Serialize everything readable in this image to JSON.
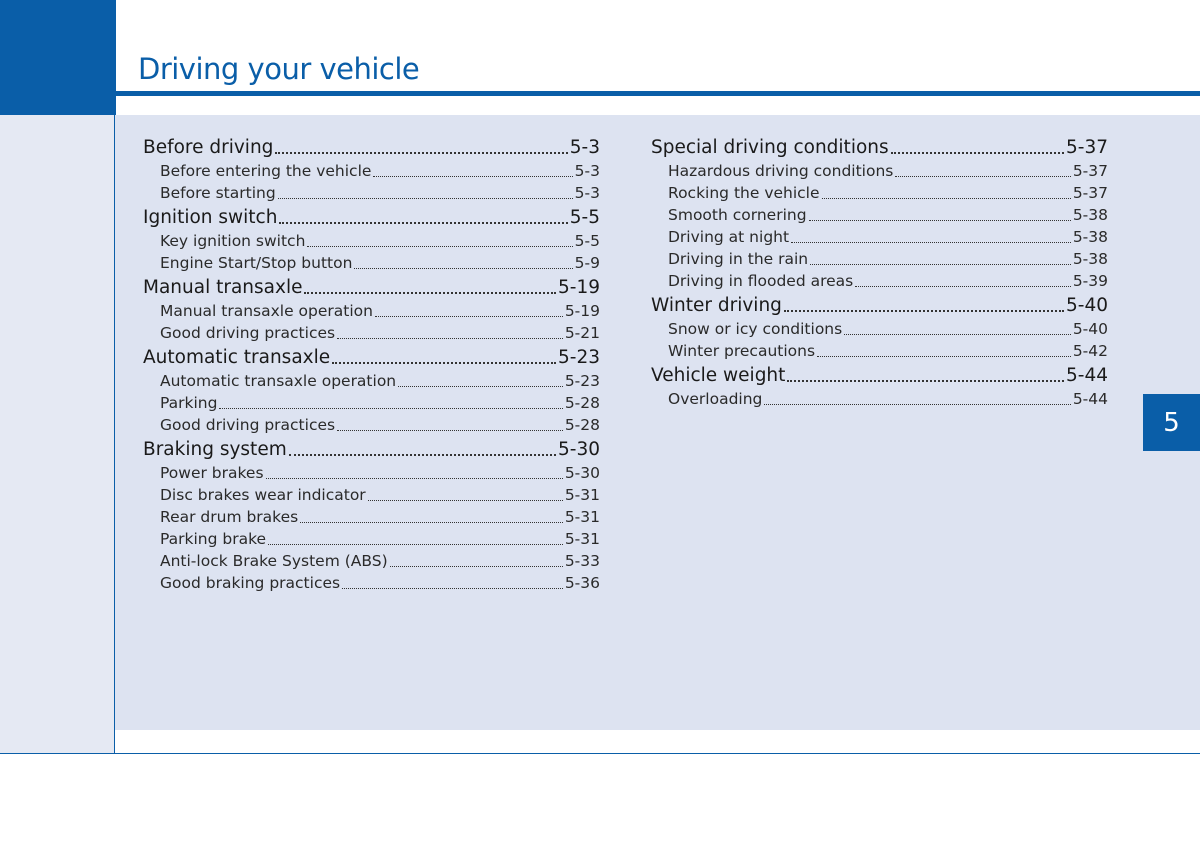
{
  "page_title": "Driving your vehicle",
  "chapter_tab": "5",
  "toc": {
    "left": [
      {
        "level": "main",
        "label": "Before driving",
        "page": "5-3"
      },
      {
        "level": "sub",
        "label": "Before entering the vehicle",
        "page": "5-3"
      },
      {
        "level": "sub",
        "label": "Before starting",
        "page": "5-3"
      },
      {
        "level": "main",
        "label": "Ignition switch",
        "page": "5-5"
      },
      {
        "level": "sub",
        "label": "Key ignition switch",
        "page": "5-5"
      },
      {
        "level": "sub",
        "label": "Engine Start/Stop button",
        "page": "5-9"
      },
      {
        "level": "main",
        "label": "Manual transaxle",
        "page": "5-19"
      },
      {
        "level": "sub",
        "label": "Manual transaxle operation",
        "page": "5-19"
      },
      {
        "level": "sub",
        "label": "Good driving practices",
        "page": "5-21"
      },
      {
        "level": "main",
        "label": "Automatic transaxle",
        "page": "5-23"
      },
      {
        "level": "sub",
        "label": "Automatic transaxle operation",
        "page": "5-23"
      },
      {
        "level": "sub",
        "label": "Parking",
        "page": "5-28"
      },
      {
        "level": "sub",
        "label": "Good driving practices",
        "page": "5-28"
      },
      {
        "level": "main",
        "label": "Braking system",
        "page": "5-30"
      },
      {
        "level": "sub",
        "label": "Power brakes",
        "page": "5-30"
      },
      {
        "level": "sub",
        "label": "Disc brakes wear indicator",
        "page": "5-31"
      },
      {
        "level": "sub",
        "label": "Rear drum brakes",
        "page": "5-31"
      },
      {
        "level": "sub",
        "label": "Parking brake",
        "page": "5-31"
      },
      {
        "level": "sub",
        "label": "Anti-lock Brake System (ABS)",
        "page": "5-33"
      },
      {
        "level": "sub",
        "label": "Good braking practices",
        "page": "5-36"
      }
    ],
    "right": [
      {
        "level": "main",
        "label": "Special driving conditions",
        "page": "5-37"
      },
      {
        "level": "sub",
        "label": "Hazardous driving conditions",
        "page": "5-37"
      },
      {
        "level": "sub",
        "label": "Rocking the vehicle",
        "page": "5-37"
      },
      {
        "level": "sub",
        "label": "Smooth cornering",
        "page": "5-38"
      },
      {
        "level": "sub",
        "label": "Driving at night",
        "page": "5-38"
      },
      {
        "level": "sub",
        "label": "Driving in the rain",
        "page": "5-38"
      },
      {
        "level": "sub",
        "label": "Driving in flooded areas",
        "page": "5-39"
      },
      {
        "level": "main",
        "label": "Winter driving",
        "page": "5-40"
      },
      {
        "level": "sub",
        "label": "Snow or icy conditions",
        "page": "5-40"
      },
      {
        "level": "sub",
        "label": "Winter precautions",
        "page": "5-42"
      },
      {
        "level": "main",
        "label": "Vehicle weight",
        "page": "5-44"
      },
      {
        "level": "sub",
        "label": "Overloading",
        "page": "5-44"
      }
    ]
  },
  "colors": {
    "accent_blue": "#0a5ea8",
    "panel_bg": "#dde3f1"
  }
}
